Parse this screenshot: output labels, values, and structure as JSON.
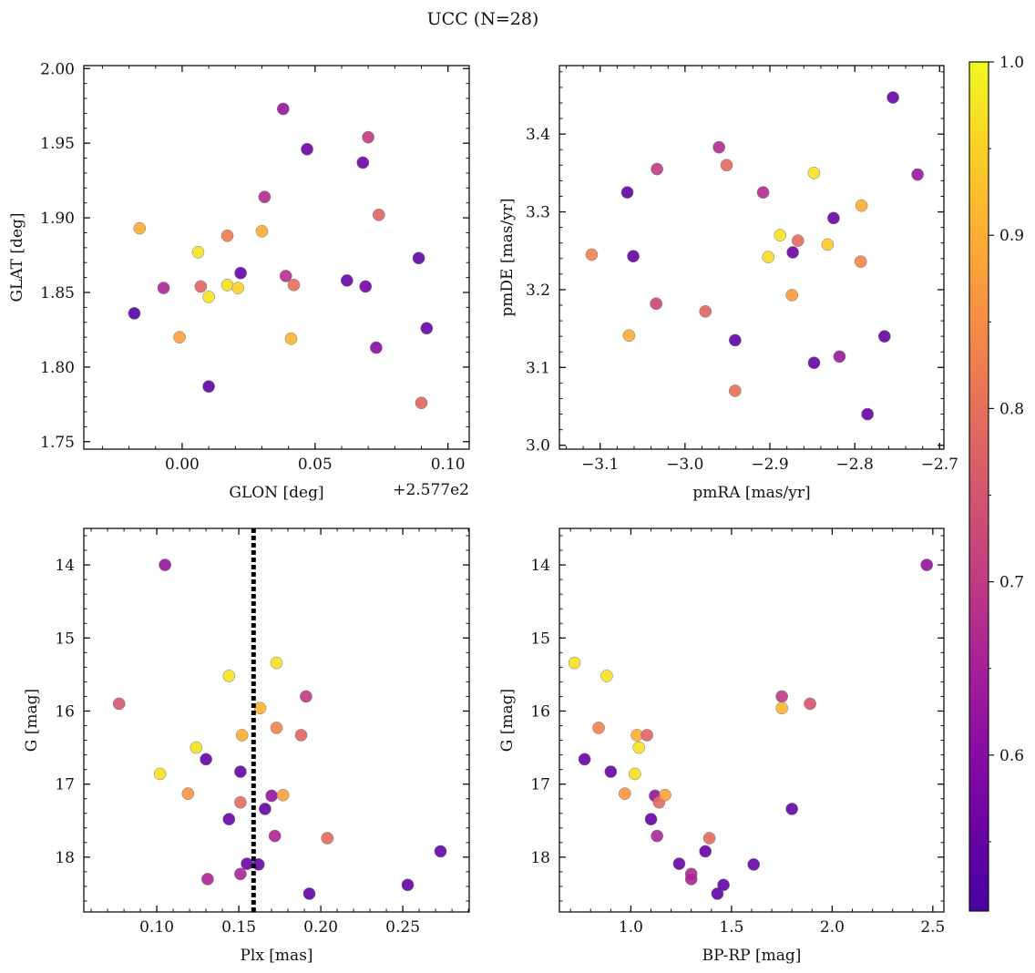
{
  "figure": {
    "title": "UCC (N=28)"
  },
  "colorbar": {
    "colormap": "plasma",
    "range": [
      0.51,
      1.0
    ],
    "ticks": [
      0.6,
      0.7,
      0.8,
      0.9,
      1.0
    ],
    "tick_labels": [
      "0.6",
      "0.7",
      "0.8",
      "0.9",
      "1.0"
    ]
  },
  "chart_data": [
    {
      "type": "scatter",
      "xlabel": "GLON [deg]",
      "ylabel": "GLAT [deg]",
      "offset_label": "+2.577e2",
      "xlim": [
        -0.037,
        0.108
      ],
      "ylim": [
        1.745,
        2.002
      ],
      "xticks": [
        0.0,
        0.05,
        0.1
      ],
      "xtick_labels": [
        "0.00",
        "0.05",
        "0.10"
      ],
      "yticks": [
        1.75,
        1.8,
        1.85,
        1.9,
        1.95,
        2.0
      ],
      "ytick_labels": [
        "1.75",
        "1.80",
        "1.85",
        "1.90",
        "1.95",
        "2.00"
      ],
      "points": [
        {
          "x": -0.018,
          "y": 1.836,
          "c": 0.53
        },
        {
          "x": -0.016,
          "y": 1.893,
          "c": 0.9
        },
        {
          "x": -0.007,
          "y": 1.853,
          "c": 0.66
        },
        {
          "x": -0.001,
          "y": 1.82,
          "c": 0.88
        },
        {
          "x": 0.006,
          "y": 1.877,
          "c": 0.97
        },
        {
          "x": 0.007,
          "y": 1.854,
          "c": 0.78
        },
        {
          "x": 0.01,
          "y": 1.847,
          "c": 0.97
        },
        {
          "x": 0.01,
          "y": 1.787,
          "c": 0.54
        },
        {
          "x": 0.017,
          "y": 1.855,
          "c": 0.97
        },
        {
          "x": 0.017,
          "y": 1.888,
          "c": 0.82
        },
        {
          "x": 0.021,
          "y": 1.853,
          "c": 0.95
        },
        {
          "x": 0.022,
          "y": 1.863,
          "c": 0.55
        },
        {
          "x": 0.03,
          "y": 1.891,
          "c": 0.9
        },
        {
          "x": 0.031,
          "y": 1.914,
          "c": 0.67
        },
        {
          "x": 0.038,
          "y": 1.973,
          "c": 0.62
        },
        {
          "x": 0.039,
          "y": 1.861,
          "c": 0.68
        },
        {
          "x": 0.041,
          "y": 1.819,
          "c": 0.91
        },
        {
          "x": 0.042,
          "y": 1.855,
          "c": 0.8
        },
        {
          "x": 0.047,
          "y": 1.946,
          "c": 0.56
        },
        {
          "x": 0.062,
          "y": 1.858,
          "c": 0.55
        },
        {
          "x": 0.068,
          "y": 1.937,
          "c": 0.56
        },
        {
          "x": 0.069,
          "y": 1.854,
          "c": 0.57
        },
        {
          "x": 0.07,
          "y": 1.954,
          "c": 0.7
        },
        {
          "x": 0.073,
          "y": 1.813,
          "c": 0.6
        },
        {
          "x": 0.074,
          "y": 1.902,
          "c": 0.78
        },
        {
          "x": 0.089,
          "y": 1.873,
          "c": 0.54
        },
        {
          "x": 0.09,
          "y": 1.776,
          "c": 0.78
        },
        {
          "x": 0.092,
          "y": 1.826,
          "c": 0.55
        }
      ]
    },
    {
      "type": "scatter",
      "xlabel": "pmRA [mas/yr]",
      "ylabel": "pmDE [mas/yr]",
      "xlim": [
        -3.148,
        -2.695
      ],
      "ylim": [
        2.995,
        3.488
      ],
      "xticks": [
        -3.1,
        -3.0,
        -2.9,
        -2.8,
        -2.7
      ],
      "xtick_labels": [
        "−3.1",
        "−3.0",
        "−2.9",
        "−2.8",
        "−2.7"
      ],
      "yticks": [
        3.0,
        3.1,
        3.2,
        3.3,
        3.4
      ],
      "ytick_labels": [
        "3.0",
        "3.1",
        "3.2",
        "3.3",
        "3.4"
      ],
      "points": [
        {
          "x": -3.11,
          "y": 3.245,
          "c": 0.83
        },
        {
          "x": -3.068,
          "y": 3.325,
          "c": 0.54
        },
        {
          "x": -3.066,
          "y": 3.141,
          "c": 0.9
        },
        {
          "x": -3.061,
          "y": 3.243,
          "c": 0.55
        },
        {
          "x": -3.033,
          "y": 3.355,
          "c": 0.7
        },
        {
          "x": -3.034,
          "y": 3.182,
          "c": 0.72
        },
        {
          "x": -2.976,
          "y": 3.172,
          "c": 0.78
        },
        {
          "x": -2.96,
          "y": 3.383,
          "c": 0.67
        },
        {
          "x": -2.951,
          "y": 3.36,
          "c": 0.79
        },
        {
          "x": -2.941,
          "y": 3.135,
          "c": 0.54
        },
        {
          "x": -2.941,
          "y": 3.07,
          "c": 0.8
        },
        {
          "x": -2.908,
          "y": 3.325,
          "c": 0.67
        },
        {
          "x": -2.902,
          "y": 3.242,
          "c": 0.96
        },
        {
          "x": -2.888,
          "y": 3.27,
          "c": 0.97
        },
        {
          "x": -2.874,
          "y": 3.193,
          "c": 0.87
        },
        {
          "x": -2.873,
          "y": 3.248,
          "c": 0.56
        },
        {
          "x": -2.867,
          "y": 3.263,
          "c": 0.79
        },
        {
          "x": -2.848,
          "y": 3.35,
          "c": 0.97
        },
        {
          "x": -2.848,
          "y": 3.106,
          "c": 0.55
        },
        {
          "x": -2.832,
          "y": 3.258,
          "c": 0.94
        },
        {
          "x": -2.825,
          "y": 3.292,
          "c": 0.55
        },
        {
          "x": -2.818,
          "y": 3.114,
          "c": 0.63
        },
        {
          "x": -2.792,
          "y": 3.308,
          "c": 0.9
        },
        {
          "x": -2.793,
          "y": 3.236,
          "c": 0.84
        },
        {
          "x": -2.785,
          "y": 3.04,
          "c": 0.55
        },
        {
          "x": -2.765,
          "y": 3.14,
          "c": 0.55
        },
        {
          "x": -2.755,
          "y": 3.447,
          "c": 0.55
        },
        {
          "x": -2.726,
          "y": 3.348,
          "c": 0.63
        }
      ]
    },
    {
      "type": "scatter",
      "xlabel": "Plx [mas]",
      "ylabel": "G [mag]",
      "xlim": [
        0.0555,
        0.2905
      ],
      "ylim": [
        18.75,
        13.5
      ],
      "y_inverted": true,
      "vline_x": 0.159,
      "xticks": [
        0.1,
        0.15,
        0.2,
        0.25
      ],
      "xtick_labels": [
        "0.10",
        "0.15",
        "0.20",
        "0.25"
      ],
      "yticks": [
        14,
        15,
        16,
        17,
        18
      ],
      "ytick_labels": [
        "14",
        "15",
        "16",
        "17",
        "18"
      ],
      "points": [
        {
          "x": 0.077,
          "y": 15.9,
          "c": 0.75
        },
        {
          "x": 0.102,
          "y": 16.86,
          "c": 0.97
        },
        {
          "x": 0.105,
          "y": 14.0,
          "c": 0.62
        },
        {
          "x": 0.119,
          "y": 17.13,
          "c": 0.86
        },
        {
          "x": 0.124,
          "y": 16.5,
          "c": 0.97
        },
        {
          "x": 0.13,
          "y": 16.66,
          "c": 0.55
        },
        {
          "x": 0.131,
          "y": 18.3,
          "c": 0.66
        },
        {
          "x": 0.144,
          "y": 15.52,
          "c": 0.97
        },
        {
          "x": 0.144,
          "y": 17.48,
          "c": 0.55
        },
        {
          "x": 0.151,
          "y": 17.25,
          "c": 0.79
        },
        {
          "x": 0.151,
          "y": 16.83,
          "c": 0.55
        },
        {
          "x": 0.151,
          "y": 18.23,
          "c": 0.66
        },
        {
          "x": 0.152,
          "y": 16.33,
          "c": 0.9
        },
        {
          "x": 0.155,
          "y": 18.09,
          "c": 0.56
        },
        {
          "x": 0.162,
          "y": 18.1,
          "c": 0.55
        },
        {
          "x": 0.163,
          "y": 15.96,
          "c": 0.91
        },
        {
          "x": 0.166,
          "y": 17.34,
          "c": 0.55
        },
        {
          "x": 0.17,
          "y": 17.16,
          "c": 0.62
        },
        {
          "x": 0.172,
          "y": 17.71,
          "c": 0.66
        },
        {
          "x": 0.173,
          "y": 15.34,
          "c": 0.97
        },
        {
          "x": 0.173,
          "y": 16.23,
          "c": 0.83
        },
        {
          "x": 0.177,
          "y": 17.15,
          "c": 0.88
        },
        {
          "x": 0.188,
          "y": 16.33,
          "c": 0.78
        },
        {
          "x": 0.191,
          "y": 15.8,
          "c": 0.7
        },
        {
          "x": 0.193,
          "y": 18.5,
          "c": 0.54
        },
        {
          "x": 0.204,
          "y": 17.74,
          "c": 0.79
        },
        {
          "x": 0.253,
          "y": 18.38,
          "c": 0.55
        },
        {
          "x": 0.273,
          "y": 17.92,
          "c": 0.55
        }
      ]
    },
    {
      "type": "scatter",
      "xlabel": "BP-RP [mag]",
      "ylabel": "G [mag]",
      "xlim": [
        0.645,
        2.555
      ],
      "ylim": [
        18.75,
        13.5
      ],
      "y_inverted": true,
      "xticks": [
        1.0,
        1.5,
        2.0,
        2.5
      ],
      "xtick_labels": [
        "1.0",
        "1.5",
        "2.0",
        "2.5"
      ],
      "yticks": [
        14,
        15,
        16,
        17,
        18
      ],
      "ytick_labels": [
        "14",
        "15",
        "16",
        "17",
        "18"
      ],
      "points": [
        {
          "x": 0.72,
          "y": 15.34,
          "c": 0.97
        },
        {
          "x": 0.77,
          "y": 16.66,
          "c": 0.55
        },
        {
          "x": 0.84,
          "y": 16.23,
          "c": 0.83
        },
        {
          "x": 0.88,
          "y": 15.52,
          "c": 0.97
        },
        {
          "x": 0.9,
          "y": 16.83,
          "c": 0.55
        },
        {
          "x": 0.97,
          "y": 17.13,
          "c": 0.86
        },
        {
          "x": 1.02,
          "y": 16.86,
          "c": 0.97
        },
        {
          "x": 1.03,
          "y": 16.33,
          "c": 0.9
        },
        {
          "x": 1.04,
          "y": 16.5,
          "c": 0.97
        },
        {
          "x": 1.08,
          "y": 16.33,
          "c": 0.78
        },
        {
          "x": 1.1,
          "y": 17.48,
          "c": 0.55
        },
        {
          "x": 1.12,
          "y": 17.16,
          "c": 0.62
        },
        {
          "x": 1.13,
          "y": 17.71,
          "c": 0.66
        },
        {
          "x": 1.14,
          "y": 17.25,
          "c": 0.79
        },
        {
          "x": 1.17,
          "y": 17.15,
          "c": 0.88
        },
        {
          "x": 1.24,
          "y": 18.09,
          "c": 0.56
        },
        {
          "x": 1.3,
          "y": 18.23,
          "c": 0.66
        },
        {
          "x": 1.3,
          "y": 18.3,
          "c": 0.66
        },
        {
          "x": 1.37,
          "y": 17.92,
          "c": 0.55
        },
        {
          "x": 1.39,
          "y": 17.74,
          "c": 0.79
        },
        {
          "x": 1.43,
          "y": 18.5,
          "c": 0.54
        },
        {
          "x": 1.46,
          "y": 18.38,
          "c": 0.55
        },
        {
          "x": 1.61,
          "y": 18.1,
          "c": 0.55
        },
        {
          "x": 1.75,
          "y": 15.8,
          "c": 0.7
        },
        {
          "x": 1.75,
          "y": 15.96,
          "c": 0.91
        },
        {
          "x": 1.8,
          "y": 17.34,
          "c": 0.55
        },
        {
          "x": 1.89,
          "y": 15.9,
          "c": 0.75
        },
        {
          "x": 2.47,
          "y": 14.0,
          "c": 0.62
        }
      ]
    }
  ]
}
